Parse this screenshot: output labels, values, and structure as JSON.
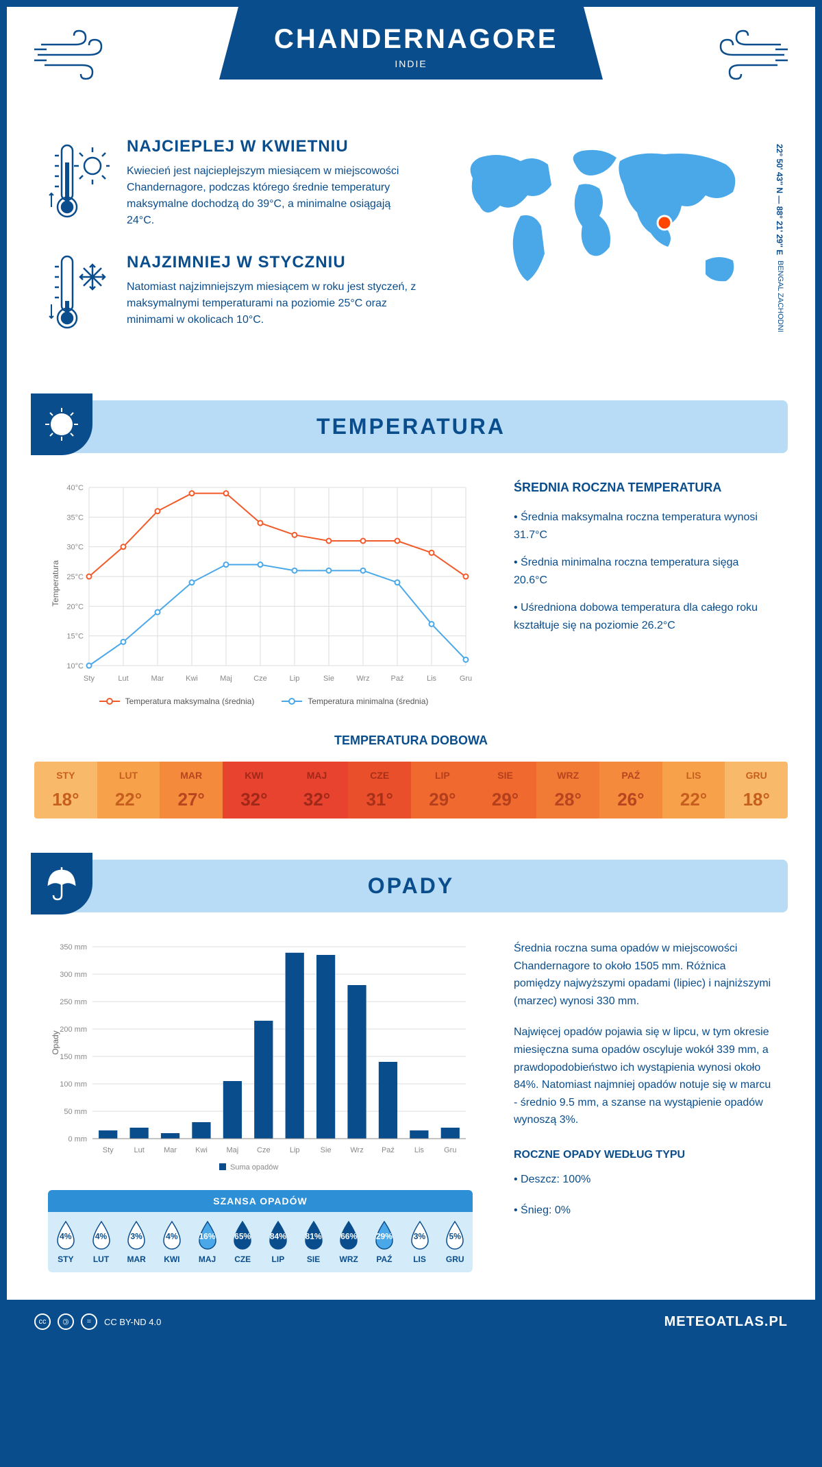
{
  "header": {
    "title": "CHANDERNAGORE",
    "subtitle": "INDIE"
  },
  "coords": "22° 50' 43'' N — 88° 21' 29'' E",
  "region": "BENGAL ZACHODNI",
  "intro": {
    "hot": {
      "heading": "NAJCIEPLEJ W KWIETNIU",
      "text": "Kwiecień jest najcieplejszym miesiącem w miejscowości Chandernagore, podczas którego średnie temperatury maksymalne dochodzą do 39°C, a minimalne osiągają 24°C."
    },
    "cold": {
      "heading": "NAJZIMNIEJ W STYCZNIU",
      "text": "Natomiast najzimniejszym miesiącem w roku jest styczeń, z maksymalnymi temperaturami na poziomie 25°C oraz minimami w okolicach 10°C."
    }
  },
  "temperature": {
    "section_title": "TEMPERATURA",
    "info_heading": "ŚREDNIA ROCZNA TEMPERATURA",
    "bullets": [
      "• Średnia maksymalna roczna temperatura wynosi 31.7°C",
      "• Średnia minimalna roczna temperatura sięga 20.6°C",
      "• Uśredniona dobowa temperatura dla całego roku kształtuje się na poziomie 26.2°C"
    ],
    "chart": {
      "type": "line",
      "months": [
        "Sty",
        "Lut",
        "Mar",
        "Kwi",
        "Maj",
        "Cze",
        "Lip",
        "Sie",
        "Wrz",
        "Paź",
        "Lis",
        "Gru"
      ],
      "ylabel": "Temperatura",
      "ylim": [
        10,
        40
      ],
      "ytick_step": 5,
      "ytick_suffix": "°C",
      "grid_color": "#dddddd",
      "series": [
        {
          "name": "Temperatura maksymalna (średnia)",
          "color": "#f15a29",
          "values": [
            25,
            30,
            36,
            39,
            39,
            34,
            32,
            31,
            31,
            31,
            29,
            25
          ]
        },
        {
          "name": "Temperatura minimalna (średnia)",
          "color": "#4aa8e8",
          "values": [
            10,
            14,
            19,
            24,
            27,
            27,
            26,
            26,
            26,
            24,
            17,
            11
          ]
        }
      ]
    },
    "daily": {
      "heading": "TEMPERATURA DOBOWA",
      "months": [
        "STY",
        "LUT",
        "MAR",
        "KWI",
        "MAJ",
        "CZE",
        "LIP",
        "SIE",
        "WRZ",
        "PAŹ",
        "LIS",
        "GRU"
      ],
      "values": [
        "18°",
        "22°",
        "27°",
        "32°",
        "32°",
        "31°",
        "29°",
        "29°",
        "28°",
        "26°",
        "22°",
        "18°"
      ],
      "colors": [
        "#f9b96b",
        "#f7a24a",
        "#f48a3c",
        "#e8432e",
        "#e8432e",
        "#ea4f2c",
        "#f06a30",
        "#f06a30",
        "#f17a35",
        "#f48a3c",
        "#f7a24a",
        "#f9b96b"
      ],
      "text_colors": [
        "#c65f1e",
        "#c65f1e",
        "#b84520",
        "#a02818",
        "#a02818",
        "#a83018",
        "#b53e1c",
        "#b53e1c",
        "#b84520",
        "#b84520",
        "#c65f1e",
        "#c65f1e"
      ]
    }
  },
  "precip": {
    "section_title": "OPADY",
    "paragraphs": [
      "Średnia roczna suma opadów w miejscowości Chandernagore to około 1505 mm. Różnica pomiędzy najwyższymi opadami (lipiec) i najniższymi (marzec) wynosi 330 mm.",
      "Najwięcej opadów pojawia się w lipcu, w tym okresie miesięczna suma opadów oscyluje wokół 339 mm, a prawdopodobieństwo ich wystąpienia wynosi około 84%. Natomiast najmniej opadów notuje się w marcu - średnio 9.5 mm, a szanse na wystąpienie opadów wynoszą 3%."
    ],
    "type_heading": "ROCZNE OPADY WEDŁUG TYPU",
    "type_bullets": [
      "• Deszcz: 100%",
      "• Śnieg: 0%"
    ],
    "chart": {
      "type": "bar",
      "months": [
        "Sty",
        "Lut",
        "Mar",
        "Kwi",
        "Maj",
        "Cze",
        "Lip",
        "Sie",
        "Wrz",
        "Paź",
        "Lis",
        "Gru"
      ],
      "ylabel": "Opady",
      "ylim": [
        0,
        350
      ],
      "ytick_step": 50,
      "ytick_suffix": " mm",
      "bar_color": "#0a4d8c",
      "grid_color": "#dddddd",
      "legend_label": "Suma opadów",
      "values": [
        15,
        20,
        10,
        30,
        105,
        215,
        339,
        335,
        280,
        140,
        15,
        20
      ]
    },
    "chance": {
      "heading": "SZANSA OPADÓW",
      "months": [
        "STY",
        "LUT",
        "MAR",
        "KWI",
        "MAJ",
        "CZE",
        "LIP",
        "SIE",
        "WRZ",
        "PAŹ",
        "LIS",
        "GRU"
      ],
      "values": [
        "4%",
        "4%",
        "3%",
        "4%",
        "16%",
        "65%",
        "84%",
        "81%",
        "66%",
        "29%",
        "3%",
        "5%"
      ],
      "fills": [
        "#ffffff",
        "#ffffff",
        "#ffffff",
        "#ffffff",
        "#4aa8e8",
        "#0a4d8c",
        "#0a4d8c",
        "#0a4d8c",
        "#0a4d8c",
        "#4aa8e8",
        "#ffffff",
        "#ffffff"
      ],
      "text_colors": [
        "#0a4d8c",
        "#0a4d8c",
        "#0a4d8c",
        "#0a4d8c",
        "#ffffff",
        "#ffffff",
        "#ffffff",
        "#ffffff",
        "#ffffff",
        "#ffffff",
        "#0a4d8c",
        "#0a4d8c"
      ]
    }
  },
  "footer": {
    "license": "CC BY-ND 4.0",
    "site": "METEOATLAS.PL"
  },
  "colors": {
    "primary": "#0a4d8c",
    "light_blue": "#b8dcf5",
    "mid_blue": "#4aa8e8"
  }
}
